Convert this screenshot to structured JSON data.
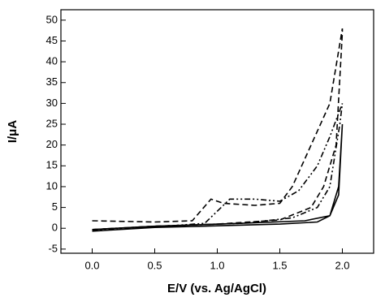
{
  "chart_data": {
    "type": "line",
    "x_label": "E/V (vs. Ag/AgCl)",
    "y_label": "I/μA",
    "xlim": [
      -0.25,
      2.25
    ],
    "ylim": [
      -6,
      52.5
    ],
    "xticks": [
      {
        "value": 0,
        "label": "0.0"
      },
      0.5,
      {
        "value": 1,
        "label": "1.0"
      },
      1.5,
      {
        "value": 2,
        "label": "2.0"
      }
    ],
    "yticks": [
      -5,
      0,
      5,
      10,
      15,
      20,
      25,
      30,
      35,
      40,
      45,
      50
    ],
    "series": [
      {
        "color": "#000000",
        "line_style": "solid",
        "x": [
          0,
          0.5,
          1.0,
          1.5,
          1.8,
          1.9,
          1.97,
          2.0,
          1.97,
          1.9,
          1.7,
          1.2,
          0.5,
          0
        ],
        "values": [
          -0.7,
          0.2,
          0.6,
          1.0,
          1.5,
          3,
          10,
          25,
          8,
          3,
          1.8,
          1.2,
          0.5,
          -0.3
        ]
      },
      {
        "color": "#000000",
        "line_style": "dashed",
        "x": [
          0,
          0.5,
          0.8,
          0.95,
          1.05,
          1.3,
          1.5,
          1.6,
          1.75,
          1.9,
          2.0,
          2.0,
          1.95,
          1.85,
          1.75,
          1.5,
          1.0,
          0.5,
          0
        ],
        "values": [
          1.8,
          1.5,
          1.8,
          7,
          6,
          5.5,
          6,
          10,
          20,
          30,
          48,
          47,
          20,
          10,
          5,
          2,
          1,
          0.5,
          -0.3
        ]
      },
      {
        "color": "#000000",
        "line_style": "dashdotdot",
        "x": [
          0,
          0.5,
          0.9,
          1.1,
          1.3,
          1.5,
          1.65,
          1.8,
          1.9,
          2.0,
          1.98,
          1.9,
          1.8,
          1.6,
          1.2,
          0.5,
          0
        ],
        "values": [
          -0.5,
          0.3,
          1.2,
          7,
          7,
          6.5,
          9,
          15,
          22,
          30,
          25,
          10,
          5,
          2.5,
          1.2,
          0.5,
          -0.3
        ]
      }
    ]
  }
}
